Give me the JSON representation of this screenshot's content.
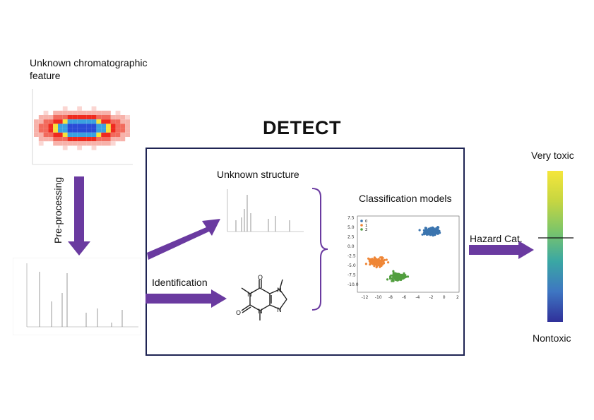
{
  "feature": {
    "label": "Unknown chromatographic feature"
  },
  "preprocessing": {
    "label": "Pre-processing"
  },
  "detect": {
    "title": "DETECT"
  },
  "structure": {
    "label": "Unknown structure"
  },
  "identification": {
    "label": "Identification"
  },
  "classification": {
    "label": "Classification models",
    "legend": [
      "0",
      "1",
      "2"
    ],
    "x_ticks": [
      "-12",
      "-10",
      "-8",
      "-6",
      "-4",
      "-2",
      "0",
      "2"
    ],
    "y_ticks": [
      "7.5",
      "5.0",
      "2.5",
      "0.0",
      "-2.5",
      "-5.0",
      "-7.5",
      "-10.0"
    ],
    "colors": [
      "#3b75af",
      "#ef8636",
      "#519e3e"
    ]
  },
  "hazard": {
    "label": "Hazard Cat."
  },
  "scale": {
    "top_label": "Very toxic",
    "bottom_label": "Nontoxic"
  },
  "colors": {
    "arrow": "#6a3aa0",
    "box_border": "#1f2453"
  }
}
